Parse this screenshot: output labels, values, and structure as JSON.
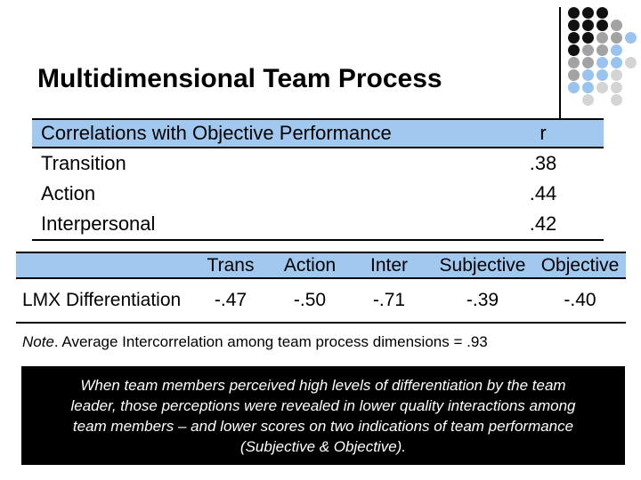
{
  "slide": {
    "title": "Multidimensional Team Process"
  },
  "colors": {
    "header_blue": "#A1C8EF",
    "callout_bg": "#000000",
    "callout_text": "#FFFFFF",
    "dot_black": "#111111",
    "dot_gray": "#A3A3A3",
    "dot_blue": "#99C4F0",
    "dot_lightgray": "#D4D4D4"
  },
  "decoration": {
    "dot_grid": [
      [
        "k",
        "k",
        "k",
        "",
        ""
      ],
      [
        "k",
        "k",
        "k",
        "g",
        ""
      ],
      [
        "k",
        "k",
        "g",
        "g",
        "b"
      ],
      [
        "k",
        "g",
        "g",
        "b",
        ""
      ],
      [
        "g",
        "g",
        "b",
        "b",
        "l"
      ],
      [
        "g",
        "b",
        "b",
        "l",
        ""
      ],
      [
        "b",
        "b",
        "l",
        "l",
        ""
      ],
      [
        "",
        "l",
        "",
        "l",
        ""
      ]
    ]
  },
  "table1": {
    "header": {
      "label": "Correlations with Objective Performance",
      "value": "r"
    },
    "rows": [
      {
        "label": "Transition",
        "value": ".38"
      },
      {
        "label": "Action",
        "value": ".44"
      },
      {
        "label": "Interpersonal",
        "value": ".42"
      }
    ]
  },
  "table2": {
    "columns": [
      "",
      "Trans",
      "Action",
      "Inter",
      "Subjective",
      "Objective"
    ],
    "rows": [
      {
        "label": "LMX Differentiation",
        "values": [
          "-.47",
          "-.50",
          "-.71",
          "-.39",
          "-.40"
        ]
      }
    ]
  },
  "note": {
    "label": "Note",
    "body": ". Average Intercorrelation among team process dimensions = .93"
  },
  "callout": {
    "lines": [
      "When team members perceived high levels of differentiation by the team",
      "leader, those perceptions were revealed in lower quality interactions among",
      "team members – and lower scores on two indications of team performance",
      "(Subjective & Objective)."
    ]
  }
}
